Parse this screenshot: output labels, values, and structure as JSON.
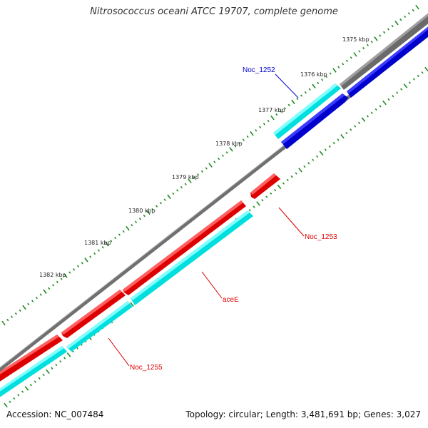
{
  "title": "Nitrosococcus oceani ATCC 19707, complete genome",
  "footer": {
    "accession": "Accession: NC_007484",
    "summary": "Topology: circular; Length: 3,481,691 bp; Genes: 3,027"
  },
  "colors": {
    "backbone": "#808080",
    "forward_cds": "#0000dd",
    "forward_rna": "#00e8e8",
    "reverse_cds": "#ee0000",
    "reverse_rna": "#00e8e8",
    "outer_gene": "#6c6c6c",
    "tick": "#1f8a1f",
    "label_forward": "#0000cc",
    "label_reverse": "#dd0000"
  },
  "scale_labels": [
    "1375 kbp",
    "1376 kbp",
    "1377 kbp",
    "1378 kbp",
    "1379 kbp",
    "1380 kbp",
    "1381 kbp",
    "1382 kbp"
  ],
  "gene_labels": {
    "noc_1252": "Noc_1252",
    "noc_1253": "Noc_1253",
    "acee": "aceE",
    "noc_1255": "Noc_1255"
  }
}
